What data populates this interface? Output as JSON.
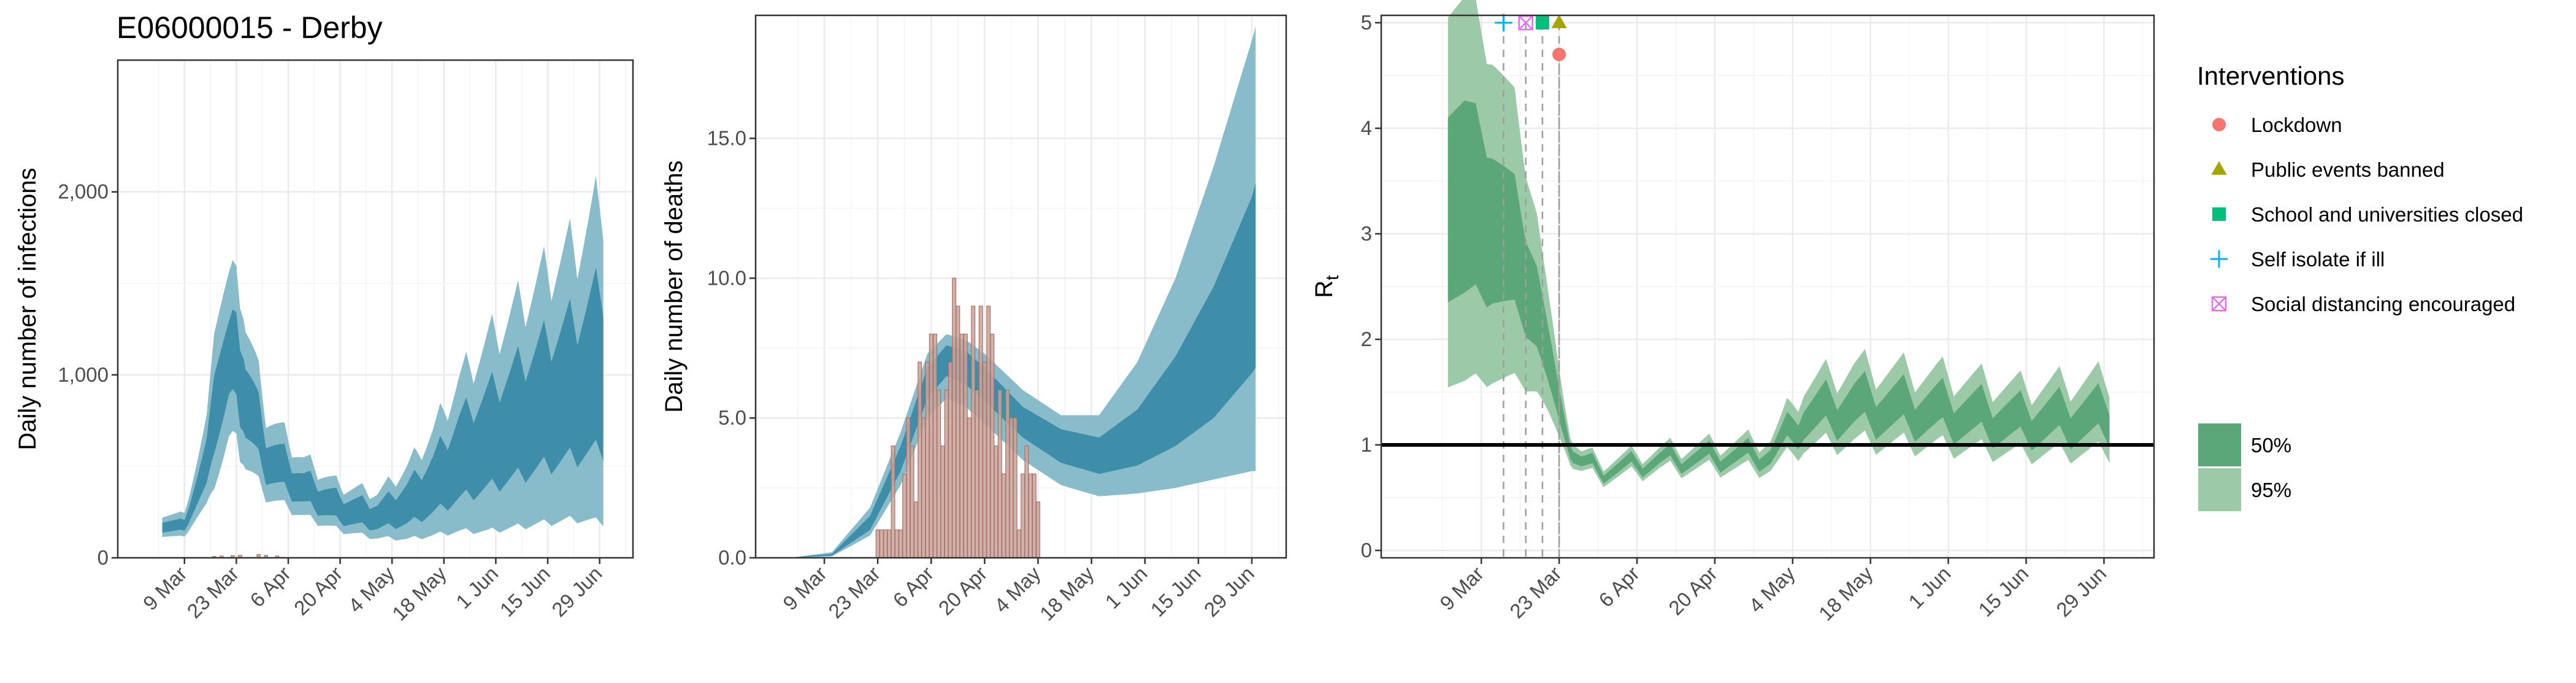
{
  "figure": {
    "title": "E06000015 - Derby",
    "colors": {
      "band95_blue": "#88bccb",
      "band50_blue": "#3e8ea9",
      "band95_green": "#9ccaa8",
      "band50_green": "#5ca77a",
      "bar_fill": "#c9a49b",
      "bar_stroke": "#a87165",
      "grid": "#ebebeb",
      "panel_border": "#333333",
      "text": "#000000",
      "tick_text": "#4d4d4d"
    }
  },
  "chart_data": [
    {
      "type": "area",
      "id": "infections",
      "title": "E06000015 - Derby",
      "ylabel": "Daily number of infections",
      "xlabel": "",
      "x_ticks": [
        "9 Mar",
        "23 Mar",
        "6 Apr",
        "20 Apr",
        "4 May",
        "18 May",
        "1 Jun",
        "15 Jun",
        "29 Jun"
      ],
      "x_tick_days": [
        8,
        22,
        36,
        50,
        64,
        78,
        92,
        106,
        120
      ],
      "xlim": [
        -10,
        129
      ],
      "ylim": [
        0,
        2720
      ],
      "y_ticks": [
        0,
        1000,
        2000
      ],
      "y_tick_labels": [
        "0",
        "1,000",
        "2,000"
      ],
      "grid": true,
      "anchors_day": [
        2,
        8,
        14,
        16,
        20,
        22,
        23,
        30,
        40,
        50,
        60,
        68,
        75,
        82,
        90,
        98,
        106,
        114,
        121
      ],
      "anchors_median": [
        170,
        175,
        500,
        800,
        1050,
        1100,
        950,
        550,
        370,
        260,
        220,
        280,
        380,
        520,
        620,
        720,
        820,
        900,
        1000
      ],
      "anchors_ci95_ratio": [
        0.35,
        0.4,
        0.5,
        0.6,
        0.45,
        0.45,
        0.5,
        0.45,
        0.45,
        0.5,
        0.6,
        0.75,
        0.8,
        0.85,
        0.9,
        0.9,
        0.9,
        0.9,
        0.95
      ],
      "anchors_ci50_ratio": [
        0.18,
        0.18,
        0.25,
        0.3,
        0.2,
        0.22,
        0.25,
        0.22,
        0.22,
        0.28,
        0.32,
        0.4,
        0.42,
        0.45,
        0.45,
        0.45,
        0.45,
        0.45,
        0.48
      ],
      "weekly_oscillation": 0.22,
      "observed_cases": {
        "days": [
          16,
          18,
          21,
          23,
          28,
          30,
          33
        ],
        "values": [
          8,
          10,
          12,
          14,
          18,
          14,
          10
        ]
      }
    },
    {
      "type": "area",
      "id": "deaths",
      "title": "",
      "ylabel": "Daily number of deaths",
      "xlabel": "",
      "x_ticks": [
        "9 Mar",
        "23 Mar",
        "6 Apr",
        "20 Apr",
        "4 May",
        "18 May",
        "1 Jun",
        "15 Jun",
        "29 Jun"
      ],
      "x_tick_days": [
        8,
        22,
        36,
        50,
        64,
        78,
        92,
        106,
        120
      ],
      "xlim": [
        -10,
        129
      ],
      "ylim": [
        0,
        19.4
      ],
      "y_ticks": [
        0,
        5,
        10,
        15
      ],
      "y_tick_labels": [
        "0.0",
        "5.0",
        "10.0",
        "15.0"
      ],
      "grid": true,
      "anchors_day": [
        0,
        10,
        20,
        28,
        35,
        40,
        45,
        50,
        60,
        70,
        80,
        90,
        100,
        110,
        120,
        121
      ],
      "anchors_median": [
        0.01,
        0.1,
        1.2,
        3.5,
        6.3,
        7.1,
        6.8,
        6.2,
        4.9,
        4.0,
        3.6,
        4.2,
        5.5,
        7.3,
        9.8,
        10.1
      ],
      "anchors_lo95": [
        0.0,
        0.05,
        0.8,
        2.6,
        5.0,
        5.7,
        5.4,
        4.8,
        3.5,
        2.6,
        2.2,
        2.3,
        2.5,
        2.8,
        3.1,
        3.1
      ],
      "anchors_hi95": [
        0.02,
        0.2,
        1.8,
        4.5,
        7.3,
        8.0,
        7.8,
        7.3,
        6.0,
        5.1,
        5.1,
        7.0,
        10.0,
        14.0,
        18.5,
        19.0
      ],
      "anchors_lo50": [
        0.01,
        0.08,
        1.0,
        3.1,
        5.7,
        6.5,
        6.2,
        5.6,
        4.3,
        3.4,
        3.0,
        3.3,
        4.0,
        5.0,
        6.6,
        6.8
      ],
      "anchors_hi50": [
        0.015,
        0.14,
        1.5,
        4.0,
        6.8,
        7.6,
        7.4,
        6.8,
        5.4,
        4.6,
        4.3,
        5.3,
        7.2,
        9.7,
        12.9,
        13.4
      ],
      "observed_deaths": {
        "days": [
          22,
          23,
          24,
          25,
          26,
          27,
          28,
          29,
          30,
          31,
          32,
          33,
          34,
          35,
          36,
          37,
          38,
          39,
          40,
          41,
          42,
          43,
          44,
          45,
          46,
          47,
          48,
          49,
          50,
          51,
          52,
          53,
          54,
          55,
          56,
          57,
          58,
          59,
          60,
          61,
          62,
          63,
          64
        ],
        "values": [
          1,
          1,
          1,
          1,
          4,
          1,
          1,
          3,
          5,
          4,
          2,
          7,
          5,
          7,
          8,
          8,
          6,
          4,
          6,
          7,
          10,
          9,
          8,
          8,
          5,
          9,
          6,
          9,
          7,
          9,
          8,
          4,
          6,
          3,
          6,
          5,
          5,
          1,
          3,
          4,
          3,
          3,
          2
        ]
      }
    },
    {
      "type": "area",
      "id": "rt",
      "title": "",
      "ylabel": "R",
      "ylabel_subscript": "t",
      "xlabel": "",
      "x_ticks": [
        "9 Mar",
        "23 Mar",
        "6 Apr",
        "20 Apr",
        "4 May",
        "18 May",
        "1 Jun",
        "15 Jun",
        "29 Jun"
      ],
      "x_tick_days": [
        8,
        22,
        36,
        50,
        64,
        78,
        92,
        106,
        120
      ],
      "xlim": [
        -10,
        129
      ],
      "ylim": [
        -0.07,
        5.07
      ],
      "y_ticks": [
        0,
        1,
        2,
        3,
        4,
        5
      ],
      "y_tick_labels": [
        "0",
        "1",
        "2",
        "3",
        "4",
        "5"
      ],
      "grid": true,
      "reference_line_y": 1,
      "anchors_day": [
        2,
        5,
        10,
        14,
        18,
        21,
        23,
        24,
        26,
        30,
        40,
        50,
        60,
        66,
        75,
        90,
        105,
        121
      ],
      "anchors_median": [
        3.3,
        3.25,
        3.05,
        2.8,
        2.3,
        1.55,
        1.2,
        0.95,
        0.82,
        0.75,
        0.85,
        0.88,
        0.9,
        1.25,
        1.35,
        1.3,
        1.2,
        1.25
      ],
      "anchors_ci95_ratio": [
        0.6,
        0.6,
        0.55,
        0.5,
        0.4,
        0.3,
        0.2,
        0.15,
        0.12,
        0.12,
        0.12,
        0.14,
        0.17,
        0.25,
        0.28,
        0.28,
        0.28,
        0.3
      ],
      "anchors_ci50_ratio": [
        0.3,
        0.3,
        0.25,
        0.22,
        0.18,
        0.14,
        0.1,
        0.07,
        0.06,
        0.06,
        0.06,
        0.07,
        0.08,
        0.12,
        0.14,
        0.14,
        0.14,
        0.15
      ],
      "weekly_oscillation": 0.22,
      "interventions": [
        {
          "name": "Lockdown",
          "day": 22,
          "y": 4.7,
          "shape": "circle",
          "color": "#f8766d"
        },
        {
          "name": "Public events banned",
          "day": 22,
          "y": 5.0,
          "shape": "triangle",
          "color": "#a3a500"
        },
        {
          "name": "School and universities closed",
          "day": 19,
          "y": 5.0,
          "shape": "square",
          "color": "#00bf7d"
        },
        {
          "name": "Self isolate if ill",
          "day": 12,
          "y": 5.0,
          "shape": "plus",
          "color": "#00b0f6"
        },
        {
          "name": "Social distancing encouraged",
          "day": 16,
          "y": 5.0,
          "shape": "boxx",
          "color": "#e76bf3"
        }
      ]
    }
  ],
  "legend": {
    "title": "Interventions",
    "items": [
      {
        "label": "Lockdown",
        "shape": "circle",
        "color": "#f8766d"
      },
      {
        "label": "Public events banned",
        "shape": "triangle",
        "color": "#a3a500"
      },
      {
        "label": "School and universities closed",
        "shape": "square",
        "color": "#00bf7d"
      },
      {
        "label": "Self isolate if ill",
        "shape": "plus",
        "color": "#00b0f6"
      },
      {
        "label": "Social distancing encouraged",
        "shape": "boxx",
        "color": "#e76bf3"
      }
    ],
    "ci_items": [
      {
        "label": "50%",
        "color": "#5ca77a"
      },
      {
        "label": "95%",
        "color": "#9ccaa8"
      }
    ]
  }
}
